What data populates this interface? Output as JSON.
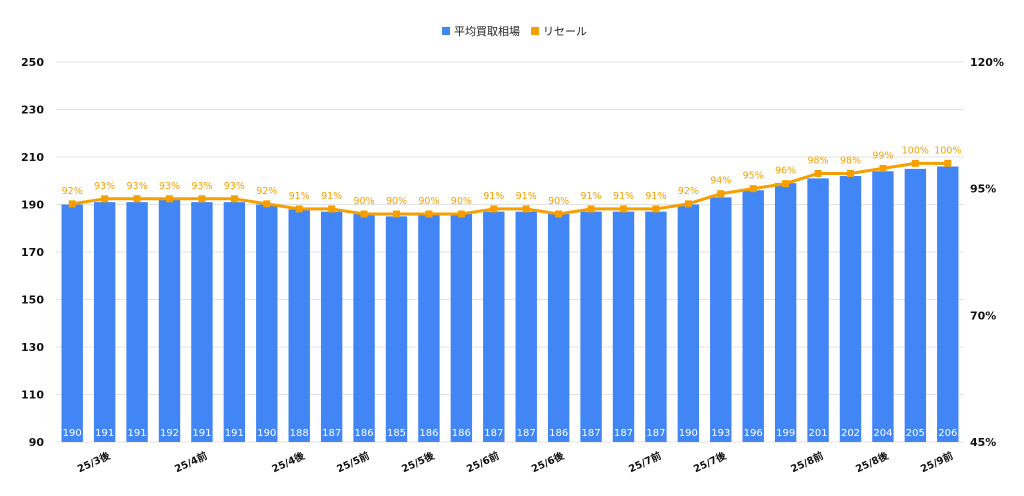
{
  "chart_data": {
    "type": "bar",
    "legend": {
      "position": "top-center",
      "entries": [
        {
          "name": "平均買取相場",
          "color": "#4285f4",
          "marker": "square"
        },
        {
          "name": "リセール",
          "color": "#f5a000",
          "marker": "square"
        }
      ]
    },
    "y_left": {
      "ticks": [
        "250",
        "230",
        "210",
        "190",
        "170",
        "150",
        "130",
        "110",
        "90"
      ],
      "min": 90,
      "max": 250
    },
    "y_right": {
      "ticks": [
        "120%",
        "95%",
        "70%",
        "45%"
      ],
      "min": 45,
      "max": 120
    },
    "grid": true,
    "x_tick_labels": [
      "25/3後",
      "25/4前",
      "25/4後",
      "25/5前",
      "25/5後",
      "25/6前",
      "25/6後",
      "25/7前",
      "25/7後",
      "25/8前",
      "25/8後",
      "25/9前"
    ],
    "series": [
      {
        "name": "平均買取相場",
        "type": "bar",
        "color": "#4285f4",
        "values": [
          190,
          191,
          191,
          192,
          191,
          191,
          190,
          188,
          187,
          186,
          185,
          186,
          186,
          187,
          187,
          186,
          187,
          187,
          187,
          190,
          193,
          196,
          199,
          201,
          202,
          204,
          205,
          206
        ],
        "labels": [
          "190",
          "191",
          "191",
          "192",
          "191",
          "191",
          "190",
          "188",
          "187",
          "186",
          "185",
          "186",
          "186",
          "187",
          "187",
          "186",
          "187",
          "187",
          "187",
          "190",
          "193",
          "196",
          "199",
          "201",
          "202",
          "204",
          "205",
          "206"
        ]
      },
      {
        "name": "リセール",
        "type": "line",
        "color": "#f5a000",
        "axis": "right",
        "values": [
          92,
          93,
          93,
          93,
          93,
          93,
          92,
          91,
          91,
          90,
          90,
          90,
          90,
          91,
          91,
          90,
          91,
          91,
          91,
          92,
          94,
          95,
          96,
          98,
          98,
          99,
          100,
          100
        ],
        "labels": [
          "92%",
          "93%",
          "93%",
          "93%",
          "93%",
          "93%",
          "92%",
          "91%",
          "91%",
          "90%",
          "90%",
          "90%",
          "90%",
          "91%",
          "91%",
          "90%",
          "91%",
          "91%",
          "91%",
          "92%",
          "94%",
          "95%",
          "96%",
          "98%",
          "98%",
          "99%",
          "100%",
          "100%"
        ]
      }
    ]
  }
}
